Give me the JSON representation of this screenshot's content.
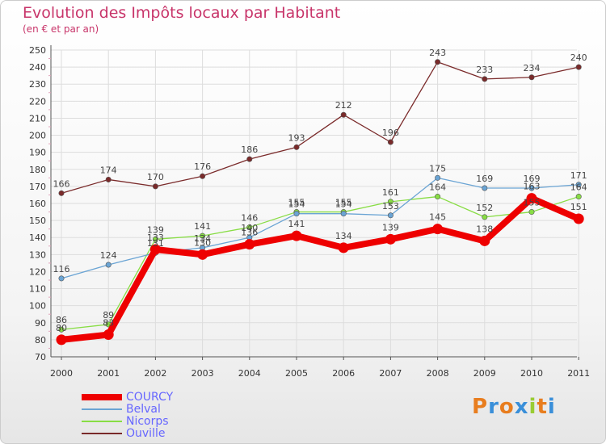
{
  "chart_data": {
    "type": "line",
    "title": "Evolution des Impôts locaux par Habitant",
    "subtitle": "(en € et par an)",
    "x": [
      "2000",
      "2001",
      "2002",
      "2003",
      "2004",
      "2005",
      "2006",
      "2007",
      "2008",
      "2009",
      "2010",
      "2011"
    ],
    "yticks": [
      70,
      80,
      90,
      100,
      110,
      120,
      130,
      140,
      150,
      160,
      170,
      180,
      190,
      200,
      210,
      220,
      230,
      240,
      250
    ],
    "ylim": [
      70,
      250
    ],
    "grid": true,
    "legend_position": "bottom-left",
    "series": [
      {
        "name": "COURCY",
        "color": "#ee0000",
        "values": [
          80,
          83,
          133,
          130,
          136,
          141,
          134,
          139,
          145,
          138,
          163,
          151
        ]
      },
      {
        "name": "Belval",
        "color": "#6aa4d4",
        "values": [
          116,
          124,
          131,
          134,
          140,
          154,
          154,
          153,
          175,
          169,
          169,
          171
        ]
      },
      {
        "name": "Nicorps",
        "color": "#88dd44",
        "values": [
          86,
          89,
          139,
          141,
          146,
          155,
          155,
          161,
          164,
          152,
          155,
          164
        ]
      },
      {
        "name": "Ouville",
        "color": "#7a2a2a",
        "values": [
          166,
          174,
          170,
          176,
          186,
          193,
          212,
          196,
          243,
          233,
          234,
          240
        ]
      }
    ]
  },
  "logo": {
    "letters": [
      "P",
      "r",
      "o",
      "x",
      "i",
      "t",
      "i"
    ],
    "colors": [
      "#e87d1e",
      "#3a8fd9",
      "#e87d1e",
      "#3a8fd9",
      "#99cc33",
      "#e87d1e",
      "#3a8fd9"
    ]
  }
}
